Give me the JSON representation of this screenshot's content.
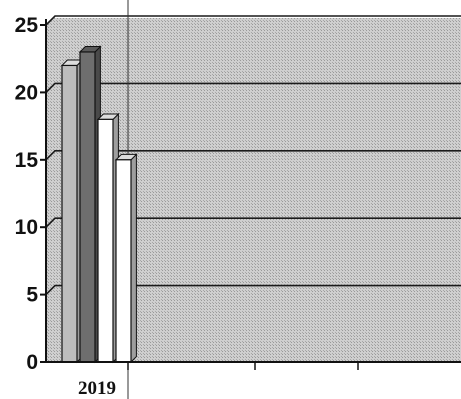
{
  "chart_data": {
    "type": "bar",
    "categories": [
      "2019"
    ],
    "series": [
      {
        "values": [
          22
        ],
        "color": "#bdbdbd"
      },
      {
        "values": [
          23
        ],
        "color": "#6e6e6e"
      },
      {
        "values": [
          18
        ],
        "color": "#ffffff"
      },
      {
        "values": [
          15
        ],
        "color": "#ffffff"
      }
    ],
    "ylim": [
      0,
      25
    ],
    "yticks": [
      "0",
      "5",
      "10",
      "15",
      "20",
      "25"
    ],
    "grid": true,
    "plot_color": "#c9c9c9",
    "gridline_color": "#1a1a1a"
  }
}
